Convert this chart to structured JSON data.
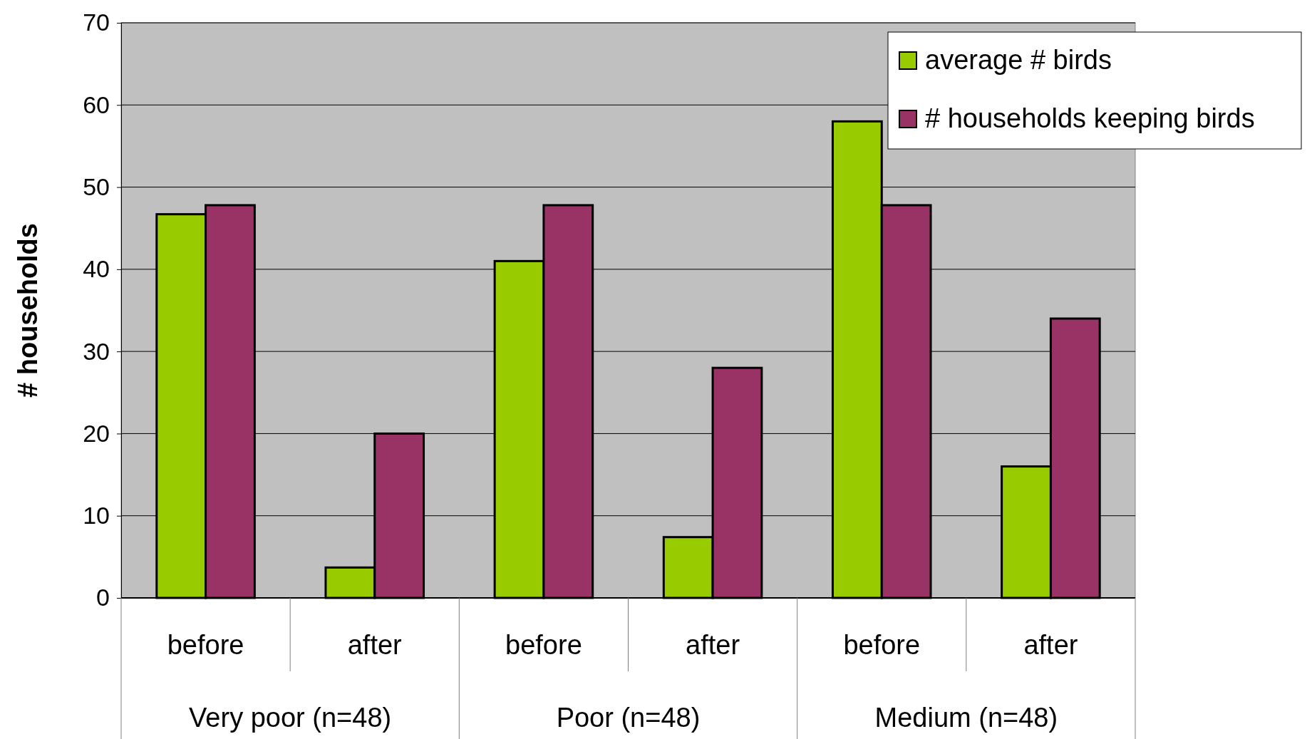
{
  "chart_data": {
    "type": "bar",
    "ylabel": "# households",
    "categories": [
      "before",
      "after",
      "before",
      "after",
      "before",
      "after"
    ],
    "annotations": [
      "Very poor (n=48)",
      "Poor (n=48)",
      "Medium (n=48)"
    ],
    "series": [
      {
        "name": "average # birds",
        "color": "#99cc00",
        "values": [
          46.7,
          3.7,
          41,
          7.4,
          58,
          16
        ]
      },
      {
        "name": "# households keeping birds",
        "color": "#993366",
        "values": [
          47.8,
          20,
          47.8,
          28,
          47.8,
          34
        ]
      }
    ],
    "ylim": [
      0,
      70
    ],
    "yticks": [
      0,
      10,
      20,
      30,
      40,
      50,
      60,
      70
    ],
    "grid": "y",
    "legend": "top right"
  }
}
